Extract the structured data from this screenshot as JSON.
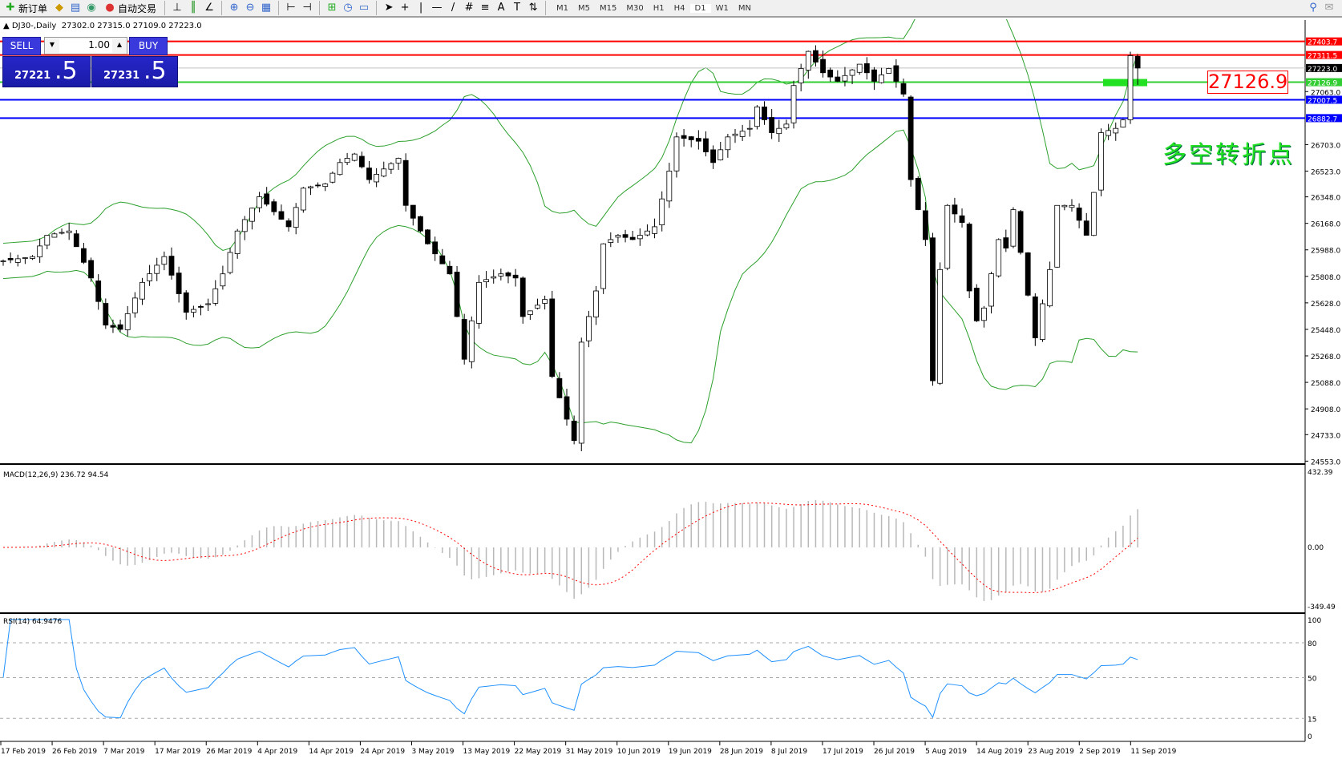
{
  "toolbar": {
    "new_order": "新订单",
    "auto_trading": "自动交易",
    "timeframes": [
      "M1",
      "M5",
      "M15",
      "M30",
      "H1",
      "H4",
      "D1",
      "W1",
      "MN"
    ]
  },
  "chart_header": {
    "symbol": "DJ30-,Daily",
    "ohlc": "27302.0 27315.0 27109.0 27223.0"
  },
  "trade_panel": {
    "sell_label": "SELL",
    "buy_label": "BUY",
    "lot": "1.00",
    "sell_price_small": "27221",
    "sell_price_big": ".5",
    "buy_price_small": "27231",
    "buy_price_big": ".5"
  },
  "annotation": {
    "text": "多空转折点",
    "box_value": "27126.9"
  },
  "colors": {
    "bull": "#ffffff",
    "bear": "#000000",
    "bands": "#2ca02c",
    "macd_hist": "#b8b8b8",
    "macd_signal": "#ff0000",
    "rsi": "#1e90ff"
  },
  "chart_data": {
    "type": "candlestick",
    "price_ticks": [
      "27063.0",
      "26703.0",
      "26523.0",
      "26348.0",
      "26168.0",
      "25988.0",
      "25808.0",
      "25628.0",
      "25448.0",
      "25268.0",
      "25088.0",
      "24908.0",
      "24733.0",
      "24553.0"
    ],
    "ylim": [
      24553.0,
      27403.7
    ],
    "hlines": [
      {
        "value": 27403.7,
        "label": "27403.7",
        "color": "#ff0000"
      },
      {
        "value": 27311.5,
        "label": "27311.5",
        "color": "#ff0000"
      },
      {
        "value": 27223.0,
        "label": "27223.0",
        "color": "#000000",
        "line": "#c0c0c0"
      },
      {
        "value": 27126.9,
        "label": "27126.9",
        "color": "#32cd32"
      },
      {
        "value": 27007.5,
        "label": "27007.5",
        "color": "#0000ff"
      },
      {
        "value": 26882.7,
        "label": "26882.7",
        "color": "#0000ff"
      }
    ],
    "dates": [
      "17 Feb 2019",
      "26 Feb 2019",
      "7 Mar 2019",
      "17 Mar 2019",
      "26 Mar 2019",
      "4 Apr 2019",
      "14 Apr 2019",
      "24 Apr 2019",
      "3 May 2019",
      "13 May 2019",
      "22 May 2019",
      "31 May 2019",
      "10 Jun 2019",
      "19 Jun 2019",
      "28 Jun 2019",
      "8 Jul 2019",
      "17 Jul 2019",
      "26 Jul 2019",
      "5 Aug 2019",
      "14 Aug 2019",
      "23 Aug 2019",
      "2 Sep 2019",
      "11 Sep 2019"
    ],
    "close_path": [
      [
        0,
        25913
      ],
      [
        4,
        25942
      ],
      [
        6,
        26087
      ],
      [
        9,
        26116
      ],
      [
        12,
        25797
      ],
      [
        14,
        25477
      ],
      [
        16,
        25448
      ],
      [
        19,
        25767
      ],
      [
        22,
        25942
      ],
      [
        25,
        25564
      ],
      [
        28,
        25622
      ],
      [
        30,
        25825
      ],
      [
        32,
        26116
      ],
      [
        35,
        26349
      ],
      [
        39,
        26145
      ],
      [
        41,
        26407
      ],
      [
        44,
        26436
      ],
      [
        46,
        26581
      ],
      [
        48,
        26639
      ],
      [
        50,
        26465
      ],
      [
        54,
        26610
      ],
      [
        55,
        26290
      ],
      [
        58,
        26029
      ],
      [
        61,
        25825
      ],
      [
        63,
        25245
      ],
      [
        65,
        25767
      ],
      [
        68,
        25825
      ],
      [
        70,
        25797
      ],
      [
        71,
        25535
      ],
      [
        74,
        25651
      ],
      [
        75,
        25128
      ],
      [
        77,
        24838
      ],
      [
        78,
        24693
      ],
      [
        79,
        25361
      ],
      [
        81,
        25709
      ],
      [
        82,
        26029
      ],
      [
        84,
        26087
      ],
      [
        86,
        26058
      ],
      [
        89,
        26145
      ],
      [
        91,
        26523
      ],
      [
        92,
        26755
      ],
      [
        95,
        26726
      ],
      [
        97,
        26581
      ],
      [
        99,
        26755
      ],
      [
        102,
        26813
      ],
      [
        103,
        26959
      ],
      [
        105,
        26784
      ],
      [
        107,
        26842
      ],
      [
        108,
        27104
      ],
      [
        110,
        27336
      ],
      [
        112,
        27191
      ],
      [
        114,
        27133
      ],
      [
        117,
        27249
      ],
      [
        119,
        27133
      ],
      [
        121,
        27220
      ],
      [
        123,
        27046
      ],
      [
        124,
        26465
      ],
      [
        126,
        26058
      ],
      [
        127,
        25099
      ],
      [
        128,
        25854
      ],
      [
        129,
        26290
      ],
      [
        131,
        26174
      ],
      [
        132,
        25709
      ],
      [
        133,
        25506
      ],
      [
        134,
        25593
      ],
      [
        136,
        26058
      ],
      [
        137,
        26000
      ],
      [
        138,
        26261
      ],
      [
        140,
        25680
      ],
      [
        141,
        25390
      ],
      [
        143,
        25854
      ],
      [
        144,
        26290
      ],
      [
        146,
        26290
      ],
      [
        148,
        26087
      ],
      [
        149,
        26378
      ],
      [
        150,
        26784
      ],
      [
        152,
        26813
      ],
      [
        153,
        26871
      ],
      [
        154,
        27307
      ],
      [
        155,
        27223
      ]
    ],
    "last_bar": {
      "open": 27302.0,
      "high": 27315.0,
      "low": 27109.0,
      "close": 27223.0
    },
    "indicators": {
      "bands": {
        "period": 20,
        "deviation": 2
      },
      "macd": {
        "label": "MACD(12,26,9) 236.72 94.54",
        "ticks": [
          "432.39",
          "0.00",
          "-349.49"
        ],
        "ylim": [
          -349.49,
          432.39
        ]
      },
      "rsi": {
        "label": "RSI(14) 64.9476",
        "ticks": [
          "100",
          "80",
          "50",
          "15",
          "0"
        ],
        "levels": [
          80,
          50,
          15
        ]
      }
    }
  }
}
